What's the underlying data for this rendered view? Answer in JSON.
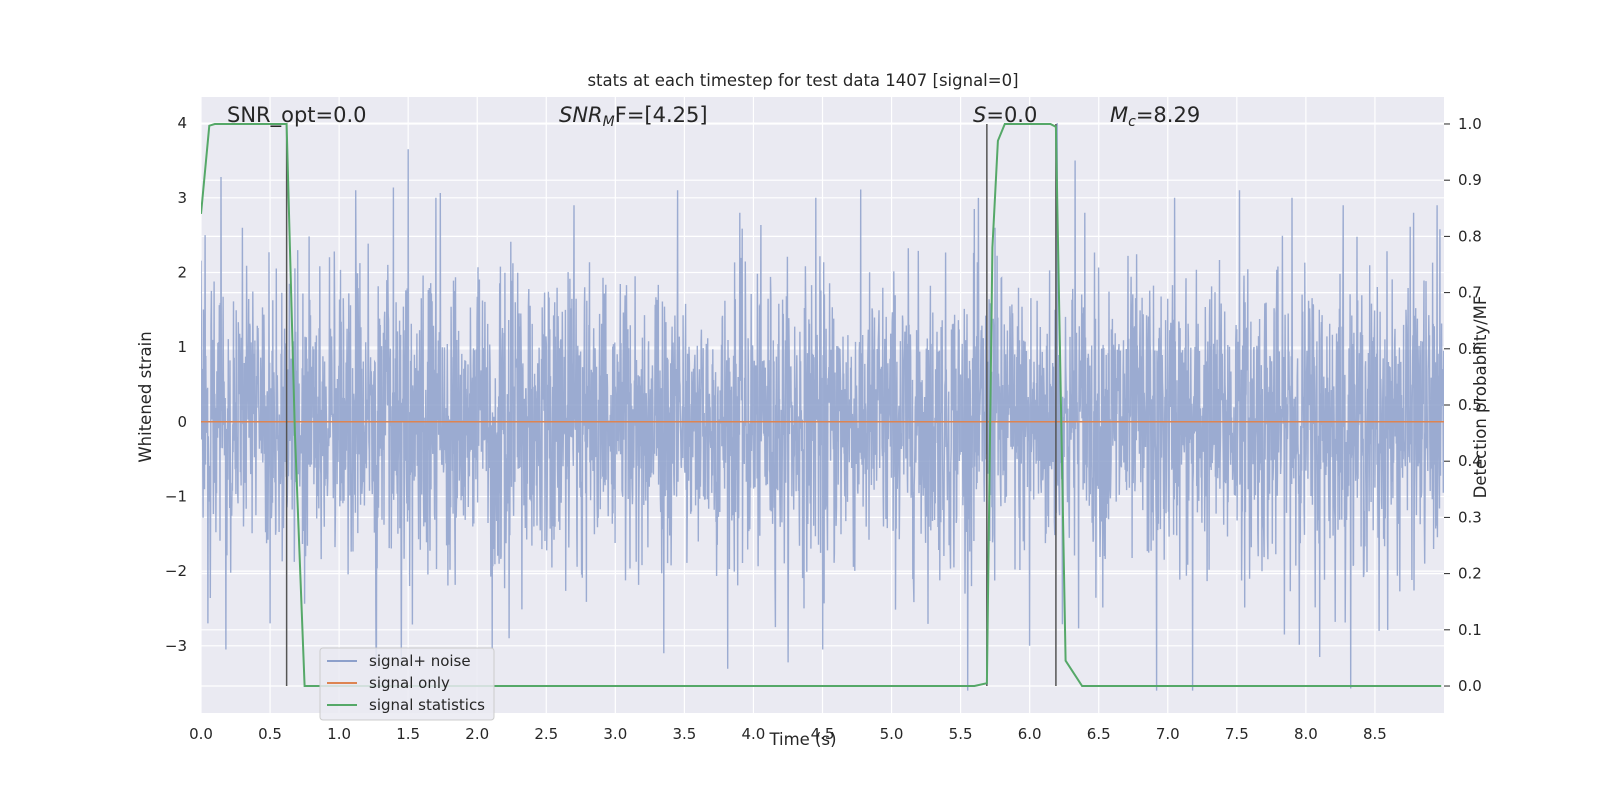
{
  "chart_data": {
    "type": "line",
    "title": "stats at each timestep for test data 1407 [signal=0]",
    "xlabel": "Time (s)",
    "ylabel": "Whitened strain",
    "ylabel_right": "Detection probability/MF",
    "xlim": [
      0.0,
      9.0
    ],
    "ylim": [
      -3.9,
      4.35
    ],
    "ylim_right": [
      -0.048,
      1.048
    ],
    "grid": true,
    "legend_position": "lower-left",
    "x_ticks": [
      "0.0",
      "0.5",
      "1.0",
      "1.5",
      "2.0",
      "2.5",
      "3.0",
      "3.5",
      "4.0",
      "4.5",
      "5.0",
      "5.5",
      "6.0",
      "6.5",
      "7.0",
      "7.5",
      "8.0",
      "8.5"
    ],
    "y_ticks_left": [
      "4",
      "3",
      "2",
      "1",
      "0",
      "−1",
      "−2",
      "−3"
    ],
    "y_ticks_right": [
      "1.0",
      "0.9",
      "0.8",
      "0.7",
      "0.6",
      "0.5",
      "0.4",
      "0.3",
      "0.2",
      "0.1",
      "0.0"
    ],
    "annotations": {
      "snr_opt": "SNR_opt=0.0",
      "snr_mf_main": "SNR",
      "snr_mf_sub": "M",
      "snr_mf_rest": "F=[4.25]",
      "s_var": "S",
      "s_rest": "=0.0",
      "mc_main": "M",
      "mc_sub": "c",
      "mc_rest": "=8.29"
    },
    "series": [
      {
        "name": "signal+ noise",
        "color": "#8da0cb",
        "axis": "left",
        "description_envelope": {
          "typical_amplitude": 1.3,
          "peak_amplitude": 4.0
        },
        "peaks_top": [
          [
            0.03,
            2.5
          ],
          [
            0.3,
            2.6
          ],
          [
            0.5,
            2.7
          ],
          [
            0.7,
            2.3
          ],
          [
            1.12,
            3.1
          ],
          [
            1.5,
            3.65
          ],
          [
            1.7,
            3.0
          ],
          [
            2.7,
            2.9
          ],
          [
            3.45,
            3.1
          ],
          [
            3.9,
            2.8
          ],
          [
            4.45,
            3.0
          ],
          [
            5.6,
            2.85
          ],
          [
            5.75,
            2.6
          ],
          [
            6.2,
            4.0
          ],
          [
            6.33,
            3.5
          ],
          [
            6.4,
            2.8
          ],
          [
            7.05,
            3.0
          ],
          [
            7.52,
            3.1
          ],
          [
            7.9,
            3.0
          ],
          [
            8.27,
            2.9
          ],
          [
            8.78,
            2.8
          ],
          [
            8.95,
            2.9
          ]
        ],
        "peaks_bottom": [
          [
            0.05,
            -2.7
          ],
          [
            0.18,
            -3.05
          ],
          [
            0.5,
            -2.7
          ],
          [
            1.27,
            -3.3
          ],
          [
            1.45,
            -3.3
          ],
          [
            2.23,
            -2.9
          ],
          [
            3.35,
            -3.1
          ],
          [
            4.5,
            -3.05
          ],
          [
            6.0,
            -3.0
          ],
          [
            6.92,
            -3.6
          ],
          [
            7.18,
            -3.6
          ],
          [
            8.1,
            -3.15
          ],
          [
            8.53,
            -2.8
          ]
        ]
      },
      {
        "name": "signal only",
        "color": "#dd8452",
        "axis": "left",
        "x": [
          0.0,
          9.0
        ],
        "y": [
          0.0,
          0.0
        ]
      },
      {
        "name": "signal statistics",
        "color": "#55a868",
        "axis": "right",
        "x": [
          0.0,
          0.06,
          0.1,
          0.58,
          0.62,
          0.68,
          0.75,
          5.6,
          5.69,
          5.73,
          5.77,
          5.82,
          6.15,
          6.19,
          6.26,
          6.38,
          8.98
        ],
        "y": [
          0.84,
          0.997,
          1.0,
          1.0,
          1.0,
          0.45,
          0.0,
          0.0,
          0.005,
          0.78,
          0.97,
          1.0,
          1.0,
          0.995,
          0.045,
          0.0,
          0.0
        ]
      }
    ],
    "vertical_lines": [
      0.62,
      5.69,
      6.19
    ]
  }
}
